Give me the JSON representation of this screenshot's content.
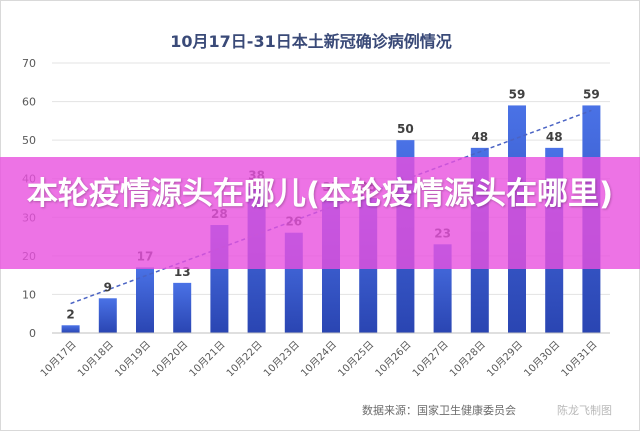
{
  "banner": {
    "text": "本轮疫情源头在哪儿(本轮疫情源头在哪里)"
  },
  "footer": {
    "source": "数据来源：国家卫生健康委员会",
    "watermark": "陈龙飞制图"
  },
  "colors": {
    "bar_top": "#3f66dc",
    "bar_bottom": "#2a47b6",
    "trend": "#4a63c4",
    "title": "#3a4a78",
    "banner": "#e850de"
  },
  "chart_data": {
    "type": "bar",
    "title": "10月17日-31日本土新冠确诊病例情况",
    "categories": [
      "10月17日",
      "10月18日",
      "10月19日",
      "10月20日",
      "10月21日",
      "10月22日",
      "10月23日",
      "10月24日",
      "10月25日",
      "10月26日",
      "10月27日",
      "10月28日",
      "10月29日",
      "10月30日",
      "10月31日"
    ],
    "values": [
      2,
      9,
      17,
      13,
      28,
      38,
      26,
      35,
      35,
      50,
      23,
      48,
      59,
      48,
      59
    ],
    "ylim": [
      0,
      70
    ],
    "yticks": [
      0,
      10,
      20,
      30,
      40,
      50,
      60,
      70
    ],
    "grid": true,
    "trendline": "linear",
    "xlabel": "",
    "ylabel": ""
  }
}
